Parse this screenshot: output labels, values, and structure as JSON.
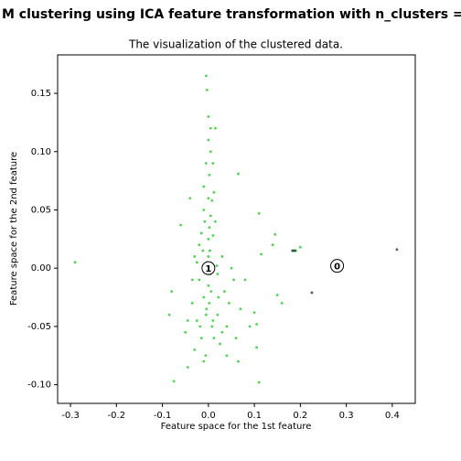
{
  "chart_data": {
    "type": "scatter",
    "title": "M clustering using ICA feature transformation with n_clusters =",
    "subtitle": "The visualization of the clustered data.",
    "x_label": "Feature space for the 1st feature",
    "y_label": "Feature space for the 2nd feature",
    "xlim": [
      -0.328,
      0.45
    ],
    "ylim": [
      -0.116,
      0.183
    ],
    "xticks": [
      -0.3,
      -0.2,
      -0.1,
      {
        "value": 0,
        "label": "0.0"
      },
      0.1,
      0.2,
      0.3,
      0.4
    ],
    "yticks": [
      {
        "value": -0.1,
        "label": "-0.10"
      },
      -0.05,
      {
        "value": 0,
        "label": "0.00"
      },
      0.05,
      {
        "value": 0.1,
        "label": "0.10"
      },
      0.15
    ],
    "series": [
      {
        "color": "#22cc22",
        "x": [
          -0.29,
          -0.075,
          -0.085,
          -0.08,
          -0.06,
          -0.05,
          -0.045,
          -0.04,
          -0.03,
          -0.035,
          -0.03,
          -0.025,
          -0.02,
          -0.02,
          -0.015,
          -0.015,
          -0.01,
          -0.01,
          -0.01,
          -0.005,
          -0.005,
          -0.005,
          -0.003,
          0,
          0,
          0.005,
          0.005,
          0.002,
          0,
          0.005,
          0.002,
          0,
          0.003,
          -0.002,
          0.004,
          0,
          0.006,
          0.002,
          -0.004,
          0.008,
          0.01,
          0.012,
          0.015,
          0.01,
          0.012,
          0.015,
          0.02,
          0.02,
          0.025,
          0.03,
          0.035,
          0.04,
          0.045,
          0.05,
          0.055,
          0.06,
          0.065,
          0.065,
          0.07,
          0.08,
          0.09,
          0.1,
          0.105,
          0.11,
          0.115,
          0.14,
          0.145,
          0.15,
          0.16,
          0.11,
          0.105,
          -0.01,
          -0.006,
          0,
          0,
          -0.008,
          0.008,
          -0.012,
          0.01,
          -0.018,
          0.018,
          -0.025,
          0.022,
          -0.035,
          0.03,
          -0.045,
          0.04,
          0.2,
          0.19,
          0.185
        ],
        "values": [
          0.005,
          -0.097,
          -0.04,
          -0.02,
          0.037,
          -0.055,
          -0.085,
          0.06,
          -0.07,
          -0.03,
          0.01,
          -0.045,
          0.02,
          -0.01,
          -0.06,
          0.03,
          -0.025,
          0.05,
          0.07,
          0.09,
          -0.04,
          0.165,
          0.153,
          0.13,
          0.11,
          0.12,
          0.1,
          0.08,
          0.06,
          0.045,
          0.035,
          0.025,
          0.015,
          0.005,
          -0.005,
          -0.015,
          -0.02,
          -0.03,
          -0.035,
          -0.05,
          -0.045,
          -0.06,
          0.12,
          0.09,
          0.065,
          0.04,
          -0.005,
          -0.04,
          -0.065,
          0.01,
          -0.02,
          -0.05,
          -0.03,
          0,
          -0.01,
          -0.06,
          0.081,
          -0.08,
          -0.035,
          -0.01,
          -0.05,
          -0.038,
          -0.068,
          0.047,
          0.012,
          0.02,
          0.029,
          -0.023,
          -0.03,
          -0.098,
          -0.048,
          -0.08,
          -0.075,
          0.01,
          -0.005,
          0.04,
          0.058,
          0.015,
          0.028,
          -0.05,
          0.002,
          0.005,
          -0.025,
          -0.01,
          -0.055,
          -0.045,
          -0.075,
          0.018,
          0.015,
          0.015
        ]
      },
      {
        "color": "#1f3d1f",
        "x": [
          0.183,
          0.188,
          0.225,
          0.41
        ],
        "values": [
          0.015,
          0.015,
          -0.021,
          0.016
        ]
      }
    ],
    "annotations": [
      {
        "label": "1",
        "x": 0,
        "y": 0
      },
      {
        "label": "0",
        "x": 0.28,
        "y": 0.002
      }
    ]
  }
}
